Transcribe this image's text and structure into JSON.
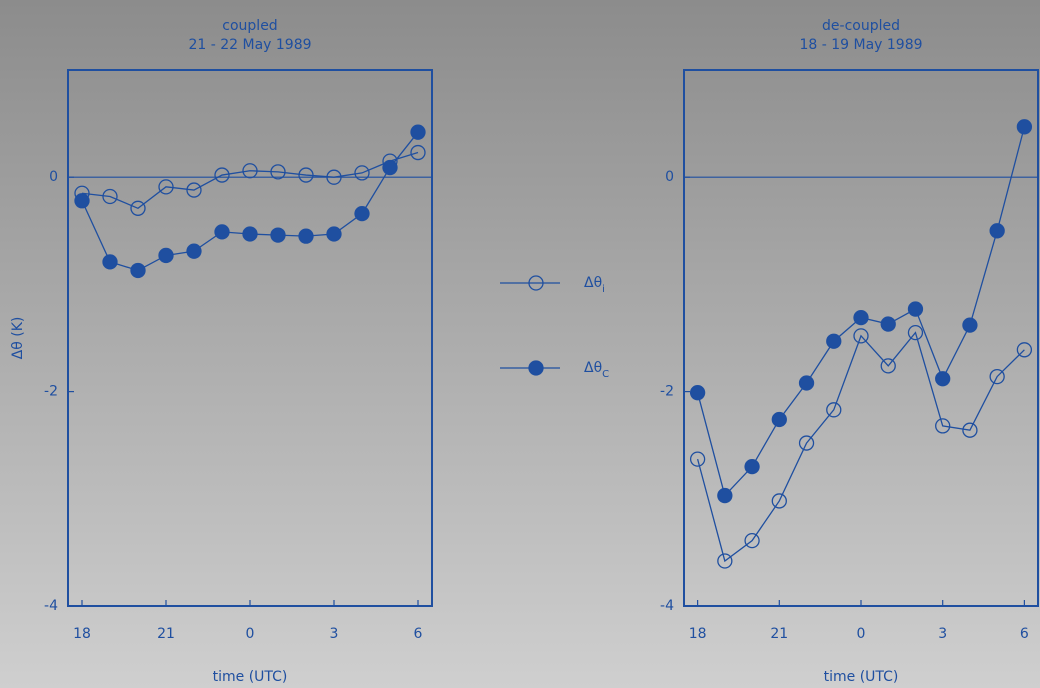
{
  "chart_data": [
    {
      "type": "line",
      "title": "coupled",
      "subtitle": "21 - 22 May 1989",
      "ylabel": "Δθ (K)",
      "xlabel": "time (UTC)",
      "x": [
        18,
        19,
        20,
        21,
        22,
        23,
        24,
        25,
        26,
        27,
        28,
        29,
        30
      ],
      "xlim": [
        17.5,
        30.5
      ],
      "xticks": [
        {
          "value": 18,
          "label": "18"
        },
        {
          "value": 21,
          "label": "21"
        },
        {
          "value": 24,
          "label": "0"
        },
        {
          "value": 27,
          "label": "3"
        },
        {
          "value": 30,
          "label": "6"
        }
      ],
      "ylim": [
        -4,
        1
      ],
      "yticks": [
        0,
        -2,
        -4
      ],
      "reference_line": 0,
      "series": [
        {
          "name": "Δθi",
          "color": "#1f4fa0",
          "marker": "open",
          "values": [
            -0.15,
            -0.18,
            -0.29,
            -0.09,
            -0.12,
            0.02,
            0.06,
            0.05,
            0.02,
            0.0,
            0.04,
            0.15,
            0.23
          ]
        },
        {
          "name": "ΔθC",
          "color": "#1f4fa0",
          "marker": "filled",
          "values": [
            -0.22,
            -0.79,
            -0.87,
            -0.73,
            -0.69,
            -0.51,
            -0.53,
            -0.54,
            -0.55,
            -0.53,
            -0.34,
            0.09,
            0.42
          ]
        }
      ]
    },
    {
      "type": "line",
      "title": "de-coupled",
      "subtitle": "18 - 19 May 1989",
      "xlabel": "time (UTC)",
      "x": [
        18,
        19,
        20,
        21,
        22,
        23,
        24,
        25,
        26,
        27,
        28,
        29,
        30
      ],
      "xlim": [
        17.5,
        30.5
      ],
      "xticks": [
        {
          "value": 18,
          "label": "18"
        },
        {
          "value": 21,
          "label": "21"
        },
        {
          "value": 24,
          "label": "0"
        },
        {
          "value": 27,
          "label": "3"
        },
        {
          "value": 30,
          "label": "6"
        }
      ],
      "ylim": [
        -4,
        1
      ],
      "yticks": [
        0,
        -2,
        -4
      ],
      "reference_line": 0,
      "series": [
        {
          "name": "Δθi",
          "color": "#1f4fa0",
          "marker": "open",
          "values": [
            -2.63,
            -3.58,
            -3.39,
            -3.02,
            -2.48,
            -2.17,
            -1.48,
            -1.76,
            -1.45,
            -2.32,
            -2.36,
            -1.86,
            -1.61
          ]
        },
        {
          "name": "ΔθC",
          "color": "#1f4fa0",
          "marker": "filled",
          "values": [
            -2.01,
            -2.97,
            -2.7,
            -2.26,
            -1.92,
            -1.53,
            -1.31,
            -1.37,
            -1.23,
            -1.88,
            -1.38,
            -0.5,
            0.47
          ]
        }
      ]
    }
  ]
}
